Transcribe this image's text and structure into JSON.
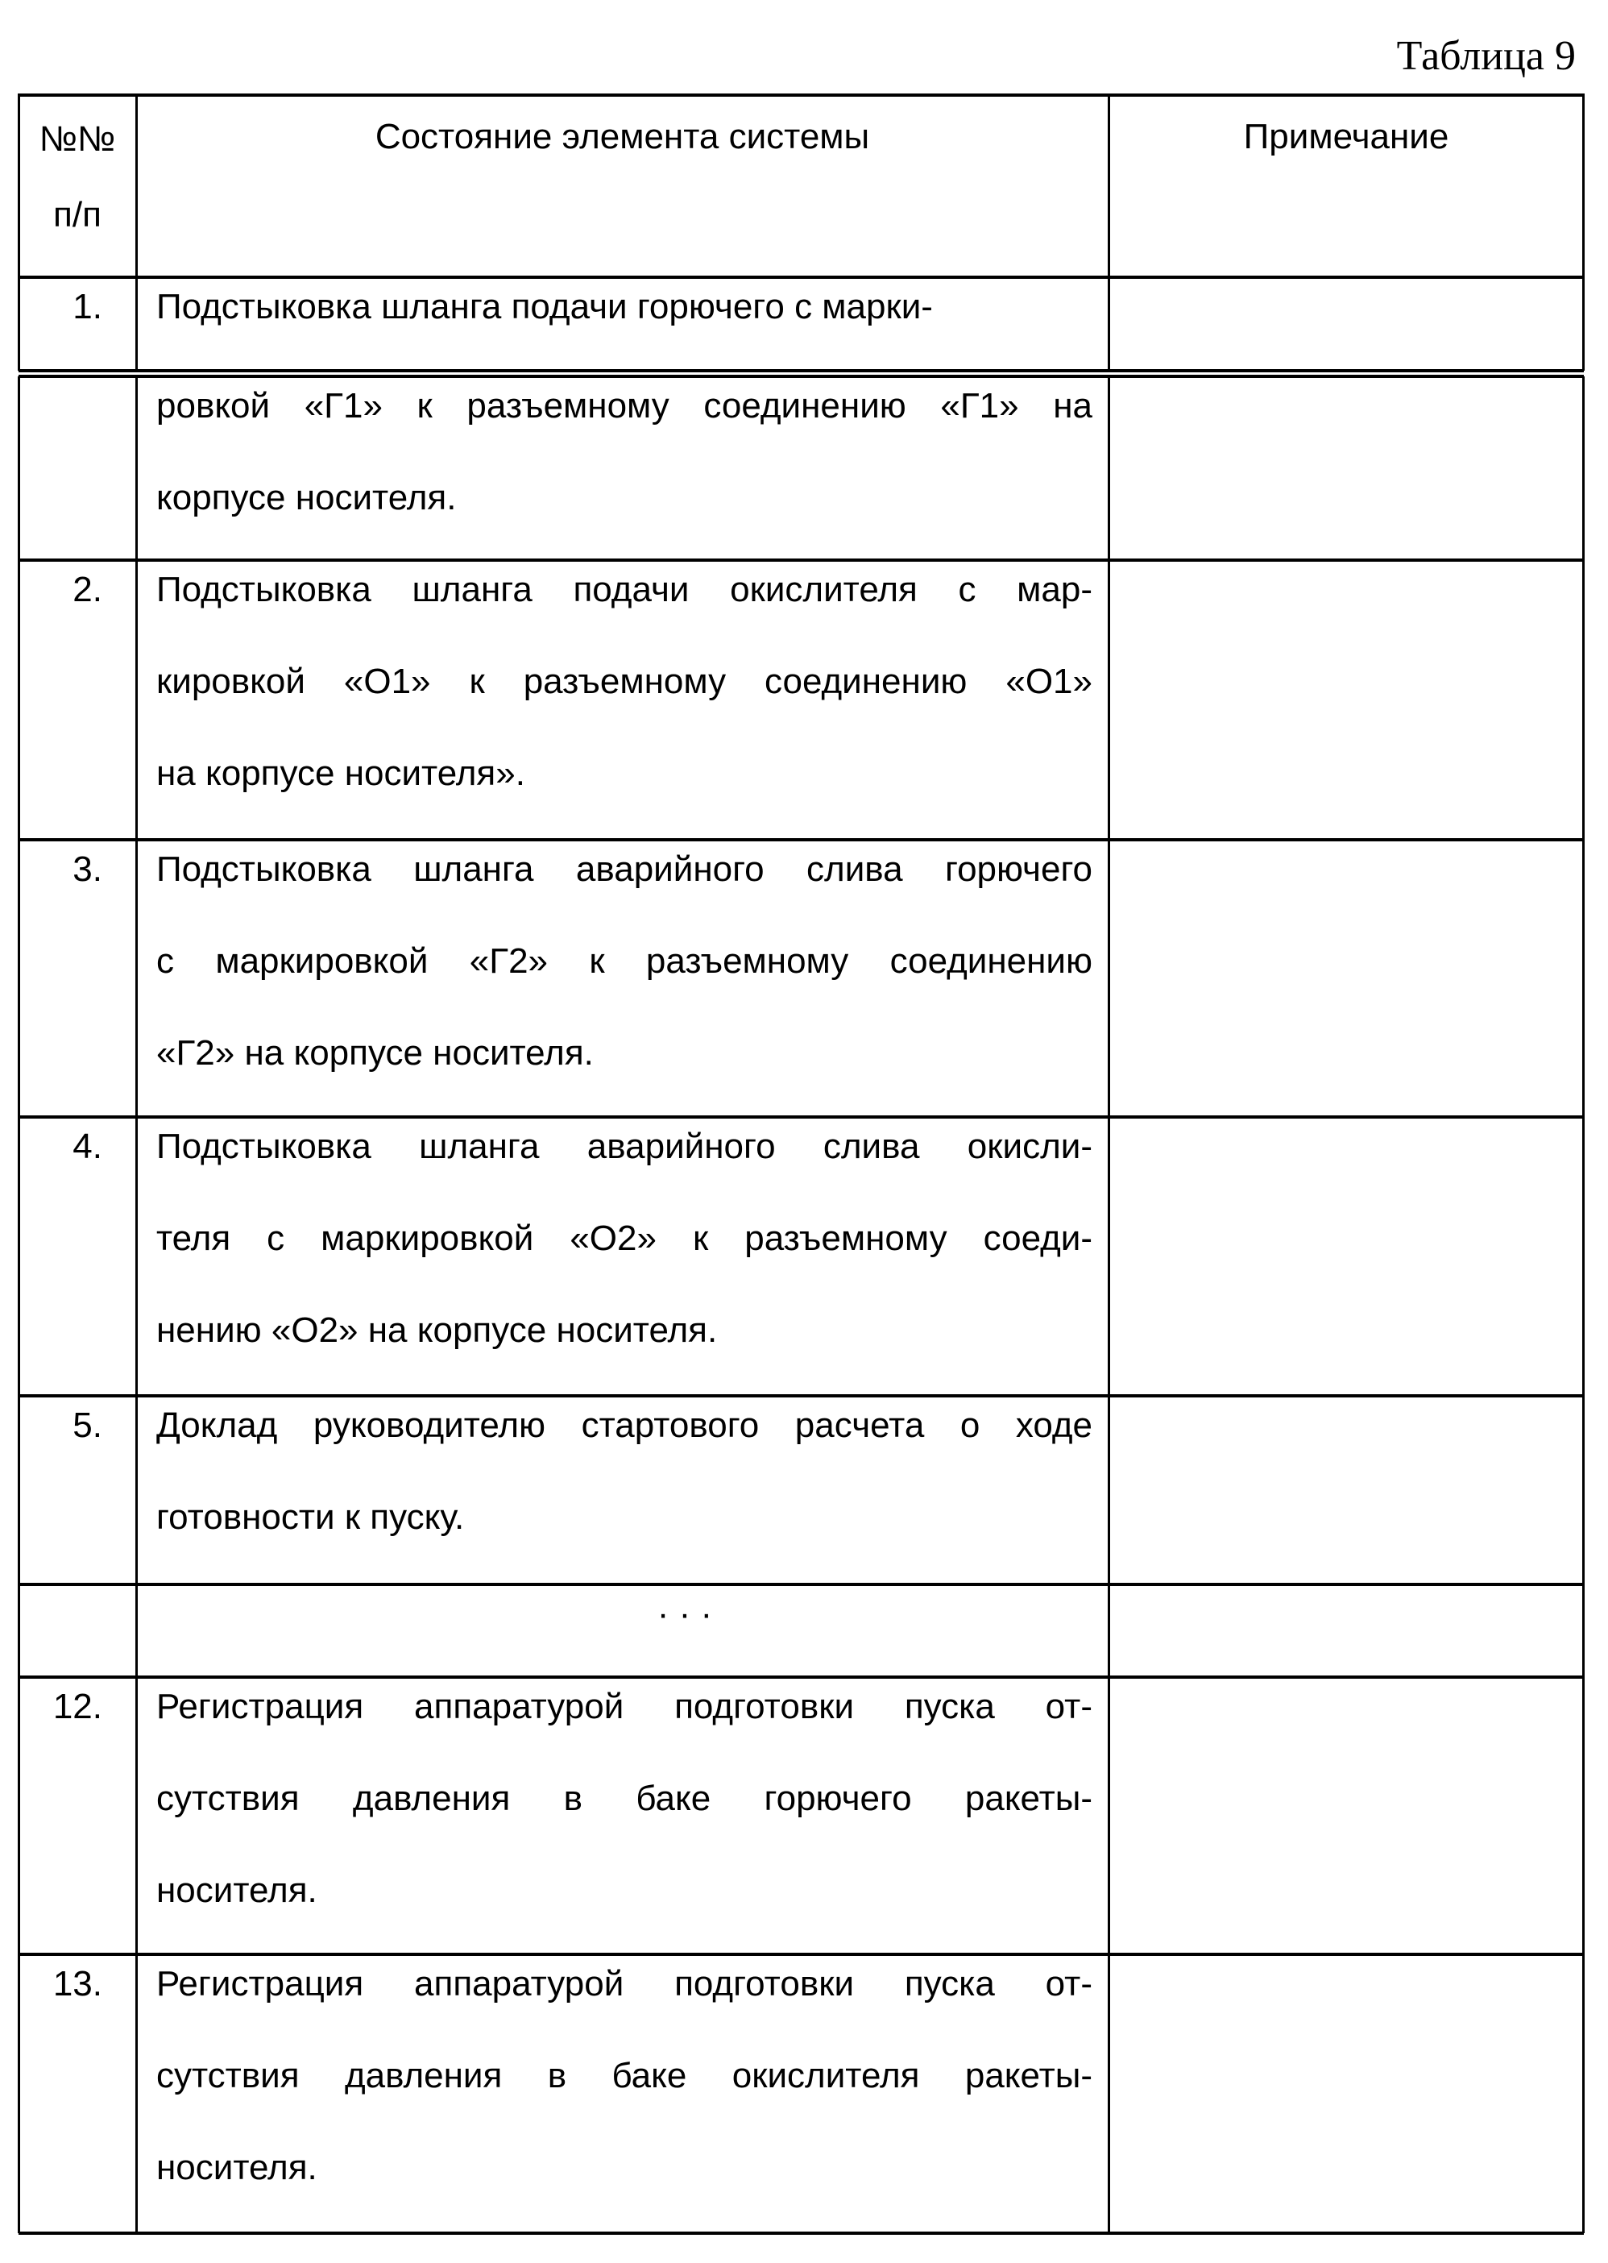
{
  "title": "Таблица 9",
  "header": {
    "col_num_line1": "№№",
    "col_num_line2": "п/п",
    "col_state": "Состояние элемента системы",
    "col_note": "Примечание"
  },
  "rows": [
    {
      "num": "1.",
      "lines": [
        "Подстыковка шланга подачи горючего с марки-"
      ],
      "note": ""
    },
    {
      "num": "",
      "lines": [
        "ровкой «Г1» к разъемному соединению «Г1» на",
        "корпусе носителя."
      ],
      "note": ""
    },
    {
      "num": "2.",
      "lines": [
        "Подстыковка шланга подачи окислителя с мар-",
        "кировкой «О1» к разъемному соединению «О1»",
        "на корпусе носителя»."
      ],
      "note": ""
    },
    {
      "num": "3.",
      "lines": [
        "Подстыковка шланга аварийного слива горючего",
        "с маркировкой «Г2» к разъемному соединению",
        "«Г2» на корпусе носителя."
      ],
      "note": ""
    },
    {
      "num": "4.",
      "lines": [
        "Подстыковка шланга аварийного слива окисли-",
        "теля с маркировкой «О2» к разъемному соеди-",
        "нению «О2» на корпусе носителя."
      ],
      "note": ""
    },
    {
      "num": "5.",
      "lines": [
        "Доклад руководителю стартового расчета о ходе",
        "готовности к пуску."
      ],
      "note": ""
    },
    {
      "num": "",
      "lines": [
        "· · ·"
      ],
      "note": ""
    },
    {
      "num": "12.",
      "lines": [
        "Регистрация аппаратурой подготовки пуска от-",
        "сутствия давления в баке горючего ракеты-",
        "носителя."
      ],
      "note": ""
    },
    {
      "num": "13.",
      "lines": [
        "Регистрация аппаратурой подготовки пуска от-",
        "сутствия давления в баке окислителя ракеты-",
        "носителя."
      ],
      "note": ""
    }
  ]
}
